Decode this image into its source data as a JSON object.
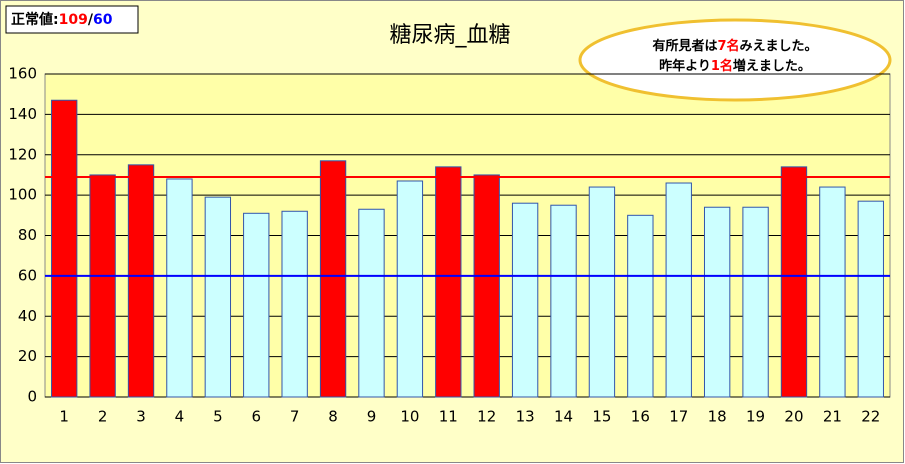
{
  "chart_data": {
    "type": "bar",
    "title": "糖尿病_血糖",
    "categories": [
      "1",
      "2",
      "3",
      "4",
      "5",
      "6",
      "7",
      "8",
      "9",
      "10",
      "11",
      "12",
      "13",
      "14",
      "15",
      "16",
      "17",
      "18",
      "19",
      "20",
      "21",
      "22"
    ],
    "values": [
      147,
      110,
      115,
      108,
      99,
      91,
      92,
      117,
      93,
      107,
      114,
      110,
      96,
      95,
      104,
      90,
      106,
      94,
      94,
      114,
      104,
      97
    ],
    "colors": [
      "#ff0000",
      "#ff0000",
      "#ff0000",
      "#ccffff",
      "#ccffff",
      "#ccffff",
      "#ccffff",
      "#ff0000",
      "#ccffff",
      "#ccffff",
      "#ff0000",
      "#ff0000",
      "#ccffff",
      "#ccffff",
      "#ccffff",
      "#ccffff",
      "#ccffff",
      "#ccffff",
      "#ccffff",
      "#ff0000",
      "#ccffff",
      "#ccffff"
    ],
    "ylim": [
      0,
      160
    ],
    "yticks": [
      0,
      20,
      40,
      60,
      80,
      100,
      120,
      140,
      160
    ],
    "grid": true,
    "reference_lines": [
      {
        "value": 109,
        "color": "#ff0000"
      },
      {
        "value": 60,
        "color": "#0000ff"
      }
    ],
    "normal_label": {
      "prefix": "正常値:",
      "separator": "/"
    },
    "annotation": [
      [
        "有所見者は",
        "7名",
        "みえました。"
      ],
      [
        "昨年より",
        "1名",
        "増えました。"
      ]
    ]
  }
}
